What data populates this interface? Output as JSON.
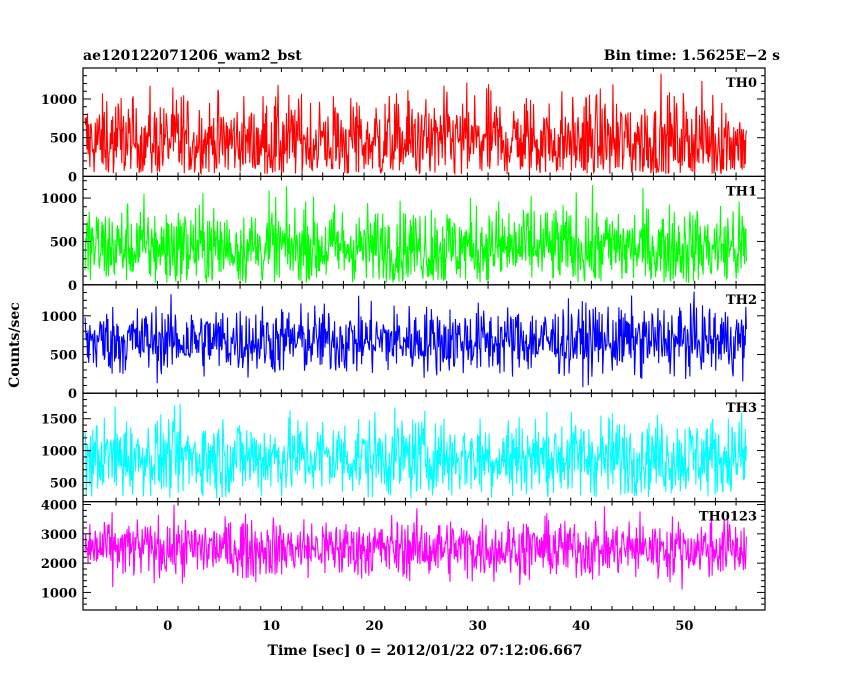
{
  "chart_data": {
    "type": "line",
    "title": "ae120122071206_wam2_bst",
    "subtitle": "Bin time: 1.5625E−2 s",
    "xlabel": "Time [sec] 0 = 2012/01/22 07:12:06.667",
    "ylabel": "Counts/sec",
    "xlim": [
      -8.2,
      57.8
    ],
    "x_data_range": [
      -8.0,
      56.0
    ],
    "x_ticks": [
      0,
      10,
      20,
      30,
      40,
      50
    ],
    "x_tick_labels": [
      "0",
      "10",
      "20",
      "30",
      "40",
      "50"
    ],
    "grid": false,
    "legend": "none",
    "panels": [
      {
        "name": "TH0",
        "color": "#ff0000",
        "ylim": [
          0,
          1400
        ],
        "y_ticks": [
          0,
          500,
          1000
        ],
        "y_tick_labels": [
          "0",
          "500",
          "1000"
        ],
        "mean": 450,
        "min": 30,
        "max": 1400
      },
      {
        "name": "TH1",
        "color": "#00ff00",
        "ylim": [
          0,
          1250
        ],
        "y_ticks": [
          0,
          500,
          1000
        ],
        "y_tick_labels": [
          "0",
          "500",
          "1000"
        ],
        "mean": 430,
        "min": 20,
        "max": 1200
      },
      {
        "name": "TH2",
        "color": "#0000ff",
        "ylim": [
          0,
          1400
        ],
        "y_ticks": [
          0,
          500,
          1000
        ],
        "y_tick_labels": [
          "0",
          "500",
          "1000"
        ],
        "mean": 680,
        "min": 50,
        "max": 1380
      },
      {
        "name": "TH3",
        "color": "#00ffff",
        "ylim": [
          200,
          1900
        ],
        "y_ticks": [
          500,
          1000,
          1500
        ],
        "y_tick_labels": [
          "500",
          "1000",
          "1500"
        ],
        "mean": 900,
        "min": 250,
        "max": 1900
      },
      {
        "name": "TH0123",
        "color": "#ff00ff",
        "ylim": [
          400,
          4100
        ],
        "y_ticks": [
          1000,
          2000,
          3000,
          4000
        ],
        "y_tick_labels": [
          "1000",
          "2000",
          "3000",
          "4000"
        ],
        "mean": 2500,
        "min": 500,
        "max": 4100
      }
    ]
  }
}
